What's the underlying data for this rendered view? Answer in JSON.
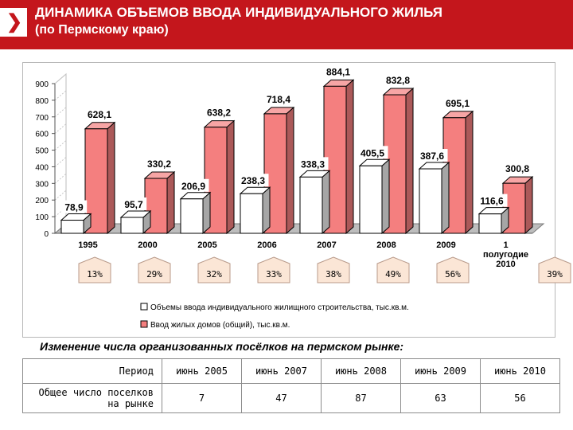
{
  "header": {
    "title": "ДИНАМИКА ОБЪЕМОВ ВВОДА ИНДИВИДУАЛЬНОГО ЖИЛЬЯ",
    "subtitle": "(по Пермскому краю)"
  },
  "colors": {
    "header_bg": "#c4161c",
    "bar_total": "#f47f7f",
    "bar_individual": "#ffffff",
    "pct_fill": "#fbe6d6"
  },
  "chart_data": {
    "type": "bar",
    "categories": [
      "1995",
      "2000",
      "2005",
      "2006",
      "2007",
      "2008",
      "2009",
      "1 полугодие 2010"
    ],
    "category_lines": [
      [
        "1995"
      ],
      [
        "2000"
      ],
      [
        "2005"
      ],
      [
        "2006"
      ],
      [
        "2007"
      ],
      [
        "2008"
      ],
      [
        "2009"
      ],
      [
        "1",
        "полугодие",
        "2010"
      ]
    ],
    "series": [
      {
        "name": "Объемы ввода индивидуального жилищного строительства, тыс.кв.м.",
        "values": [
          78.9,
          95.7,
          206.9,
          238.3,
          338.3,
          405.5,
          387.6,
          116.6
        ],
        "labels": [
          "78,9",
          "95,7",
          "206,9",
          "238,3",
          "338,3",
          "405,5",
          "387,6",
          "116,6"
        ]
      },
      {
        "name": "Ввод жилых домов (общий), тыс.кв.м.",
        "values": [
          628.1,
          330.2,
          638.2,
          718.4,
          884.1,
          832.8,
          695.1,
          300.8
        ],
        "labels": [
          "628,1",
          "330,2",
          "638,2",
          "718,4",
          "884,1",
          "832,8",
          "695,1",
          "300,8"
        ]
      }
    ],
    "shares": [
      "13%",
      "29%",
      "32%",
      "33%",
      "38%",
      "49%",
      "56%",
      "39%"
    ],
    "y_ticks": [
      "0",
      "100",
      "200",
      "300",
      "400",
      "500",
      "600",
      "700",
      "800",
      "900"
    ],
    "ylim": [
      0,
      900
    ],
    "legend_position": "bottom"
  },
  "section": {
    "title": "Изменение числа организованных посёлков на пермском рынке:"
  },
  "table": {
    "period_label": "Период",
    "periods": [
      "июнь 2005",
      "июнь 2007",
      "июнь 2008",
      "июнь 2009",
      "июнь 2010"
    ],
    "row_label": "Общее число поселков на рынке",
    "values": [
      "7",
      "47",
      "87",
      "63",
      "56"
    ]
  }
}
